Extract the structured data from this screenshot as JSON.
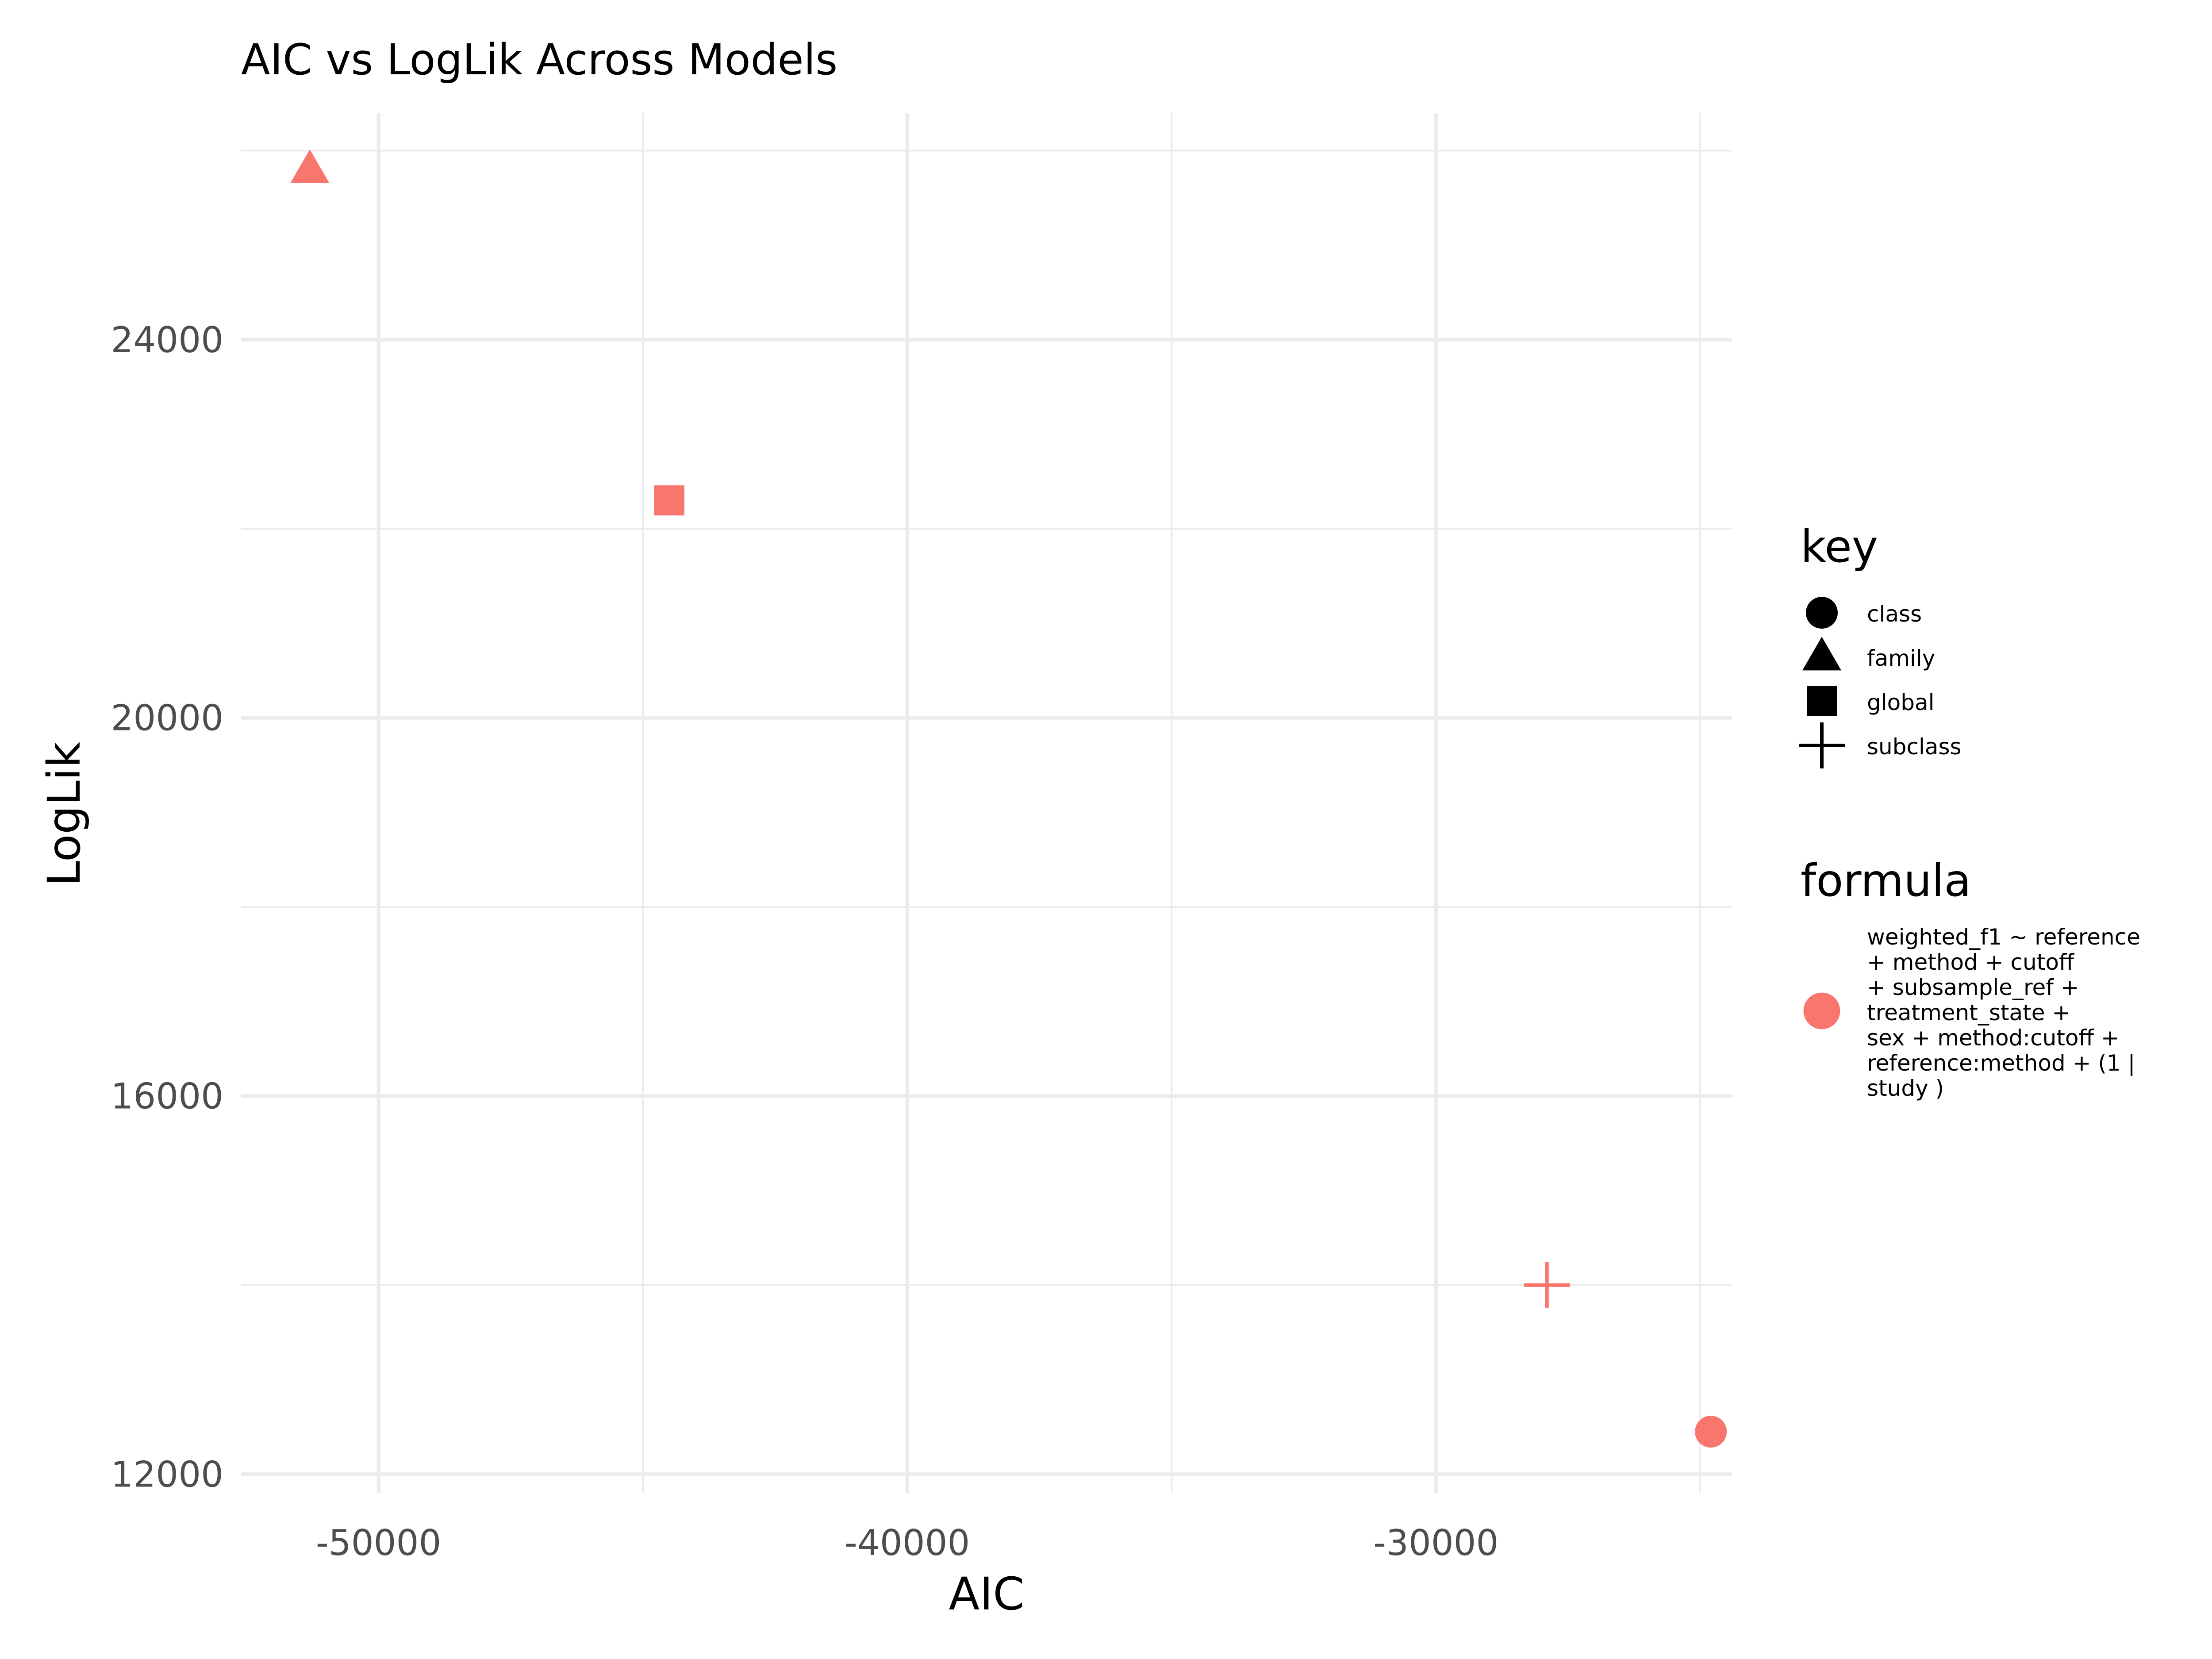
{
  "chart_data": {
    "type": "scatter",
    "title": "AIC vs LogLik Across Models",
    "xlabel": "AIC",
    "ylabel": "LogLik",
    "xlim": [
      -52600,
      -24400
    ],
    "ylim": [
      11800,
      26400
    ],
    "x_ticks": [
      -50000,
      -40000,
      -30000
    ],
    "x_tick_labels": [
      "-50000",
      "-40000",
      "-30000"
    ],
    "y_ticks": [
      12000,
      16000,
      20000,
      24000
    ],
    "y_tick_labels": [
      "12000",
      "16000",
      "20000",
      "24000"
    ],
    "grid": true,
    "points": [
      {
        "key": "family",
        "x": -51300,
        "y": 25800,
        "formula_index": 0
      },
      {
        "key": "global",
        "x": -44500,
        "y": 22300,
        "formula_index": 0
      },
      {
        "key": "subclass",
        "x": -27900,
        "y": 14000,
        "formula_index": 0
      },
      {
        "key": "class",
        "x": -24800,
        "y": 12450,
        "formula_index": 0
      }
    ],
    "legend": {
      "placement": "right",
      "key": {
        "title": "key",
        "entries": [
          {
            "label": "class",
            "shape": "circle"
          },
          {
            "label": "family",
            "shape": "triangle"
          },
          {
            "label": "global",
            "shape": "square"
          },
          {
            "label": "subclass",
            "shape": "plus"
          }
        ]
      },
      "formula": {
        "title": "formula",
        "entries": [
          {
            "lines": [
              "weighted_f1 ~ reference",
              "+ method + cutoff",
              "+ subsample_ref +",
              "treatment_state +",
              "sex + method:cutoff +",
              "reference:method + (1 |",
              "study )"
            ],
            "color": "#F8766D"
          }
        ]
      }
    },
    "point_color": "#F8766D",
    "grid_color": "#EBEBEB"
  }
}
